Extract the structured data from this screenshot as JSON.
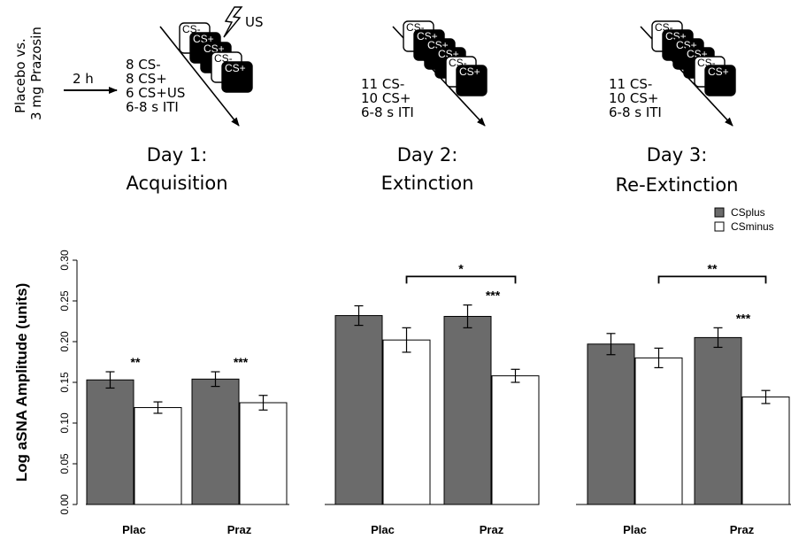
{
  "protocol": {
    "drug_label_line1": "Placebo vs.",
    "drug_label_line2": "3 mg Prazosin",
    "delay_label": "2 h",
    "days": [
      {
        "title": "Day 1:",
        "subtitle": "Acquisition",
        "trials": [
          "8 CS-",
          "8 CS+",
          "6 CS+US",
          "6-8 s ITI"
        ],
        "cards": [
          "CS-",
          "CS+",
          "CS+",
          "CS-",
          "CS+"
        ],
        "us_label": "US"
      },
      {
        "title": "Day 2:",
        "subtitle": "Extinction",
        "trials": [
          "11 CS-",
          "10 CS+",
          "6-8 s ITI"
        ],
        "cards": [
          "CS-",
          "CS+",
          "CS+",
          "CS+",
          "CS-",
          "CS+"
        ]
      },
      {
        "title": "Day 3:",
        "subtitle": "Re-Extinction",
        "trials": [
          "11 CS-",
          "10 CS+",
          "6-8 s ITI"
        ],
        "cards": [
          "CS-",
          "CS+",
          "CS+",
          "CS+",
          "CS-",
          "CS+"
        ]
      }
    ]
  },
  "chart_data": {
    "type": "bar",
    "ylabel": "Log aSNA Amplitude (units)",
    "ylim": [
      0,
      0.3
    ],
    "yticks": [
      "0.00",
      "0.05",
      "0.10",
      "0.15",
      "0.20",
      "0.25",
      "0.30"
    ],
    "legend": {
      "placement": "top-right",
      "entries": [
        {
          "name": "CSplus",
          "color": "#6b6b6b"
        },
        {
          "name": "CSminus",
          "color": "#ffffff"
        }
      ]
    },
    "panels": [
      {
        "day": "Day 1",
        "categories": [
          "Plac",
          "Praz"
        ],
        "series": [
          {
            "name": "CSplus",
            "values": [
              0.153,
              0.154
            ],
            "errors": [
              0.01,
              0.009
            ]
          },
          {
            "name": "CSminus",
            "values": [
              0.119,
              0.125
            ],
            "errors": [
              0.007,
              0.009
            ]
          }
        ],
        "significance": [
          {
            "category": "Plac",
            "label": "**"
          },
          {
            "category": "Praz",
            "label": "***"
          }
        ]
      },
      {
        "day": "Day 2",
        "categories": [
          "Plac",
          "Praz"
        ],
        "series": [
          {
            "name": "CSplus",
            "values": [
              0.232,
              0.231
            ],
            "errors": [
              0.012,
              0.014
            ]
          },
          {
            "name": "CSminus",
            "values": [
              0.202,
              0.158
            ],
            "errors": [
              0.015,
              0.008
            ]
          }
        ],
        "significance": [
          {
            "category": "Praz",
            "label": "***"
          }
        ],
        "bracket_label": "*"
      },
      {
        "day": "Day 3",
        "categories": [
          "Plac",
          "Praz"
        ],
        "series": [
          {
            "name": "CSplus",
            "values": [
              0.197,
              0.205
            ],
            "errors": [
              0.013,
              0.012
            ]
          },
          {
            "name": "CSminus",
            "values": [
              0.18,
              0.132
            ],
            "errors": [
              0.012,
              0.008
            ]
          }
        ],
        "significance": [
          {
            "category": "Praz",
            "label": "***"
          }
        ],
        "bracket_label": "**"
      }
    ]
  }
}
